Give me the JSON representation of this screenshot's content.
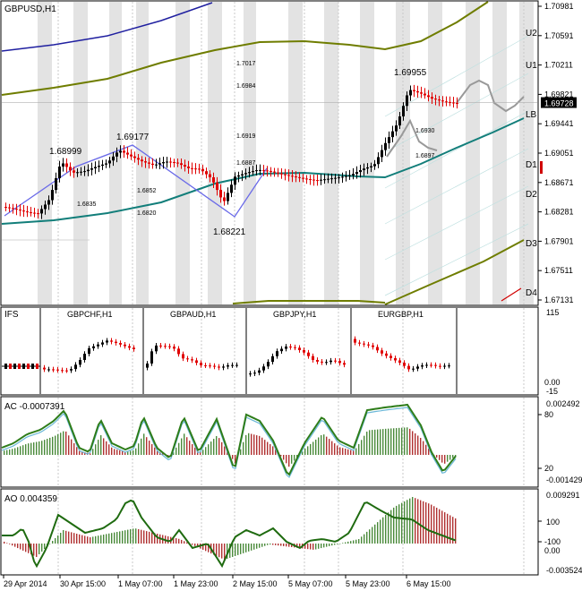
{
  "symbol_title": "GBPUSD,H1",
  "colors": {
    "background": "#ffffff",
    "frame": "#000000",
    "grid": "#c8c8c8",
    "stripe": "#e3e3e3",
    "bull": "#000000",
    "bear": "#e00000",
    "teal": "#127e7a",
    "olive": "#6f7d00",
    "blue": "#2020a0",
    "zigzag": "#6a6ae8",
    "projection": "#999999",
    "marker": "#d00000",
    "ac_line": "#2e7d1a",
    "ac_signal": "#6bb8d8",
    "ao_line": "#1f6b10",
    "hist_green": "#4a8a3a",
    "hist_red": "#b03030"
  },
  "main": {
    "current_price": "1.69728",
    "price_axis_labels": [
      "1.70981",
      "1.70591",
      "1.70211",
      "1.69821",
      "1.69441",
      "1.69051",
      "1.68671",
      "1.68281",
      "1.67901",
      "1.67511",
      "1.67131"
    ],
    "level_labels": [
      "U2",
      "U1",
      "LB",
      "D1",
      "D2",
      "D3",
      "D4"
    ],
    "swing_labels": [
      "1.68999",
      "1.69177",
      "1.68221",
      "1.69955"
    ],
    "retrace_labels": [
      "1.6835",
      "1.6852",
      "1.6820",
      "1.7017",
      "1.6984",
      "1.6919",
      "1.6887",
      "1.6930",
      "1.6897"
    ]
  },
  "ifs": {
    "title": "IFS",
    "panels": [
      "GBPCHF,H1",
      "GBPAUD,H1",
      "GBPJPY,H1",
      "EURGBP,H1"
    ],
    "axis": [
      "115",
      "0.00",
      "-15"
    ]
  },
  "ac": {
    "title": "AC -0.0007391",
    "axis": [
      "0.002492",
      "80",
      "20",
      "-0.001429"
    ]
  },
  "ao": {
    "title": "AO 0.004359",
    "axis": [
      "0.009291",
      "100",
      "0.00",
      "-100",
      "-0.003524"
    ]
  },
  "time_axis": [
    "29 Apr 2014",
    "30 Apr 15:00",
    "1 May 07:00",
    "1 May 23:00",
    "2 May 15:00",
    "5 May 07:00",
    "5 May 23:00",
    "6 May 15:00"
  ],
  "chart_data": [
    {
      "type": "candlestick",
      "title": "GBPUSD,H1",
      "ylim": [
        1.6706,
        1.7106
      ],
      "x": [
        "29 Apr 2014",
        "30 Apr 15:00",
        "1 May 07:00",
        "1 May 23:00",
        "2 May 15:00",
        "5 May 07:00",
        "5 May 23:00",
        "6 May 15:00"
      ],
      "close_path": [
        1.6835,
        1.6832,
        1.6828,
        1.6826,
        1.6845,
        1.6895,
        1.688,
        1.6882,
        1.6888,
        1.6893,
        1.691,
        1.6902,
        1.6895,
        1.689,
        1.6895,
        1.6893,
        1.6886,
        1.6885,
        1.6872,
        1.684,
        1.6875,
        1.688,
        1.6884,
        1.6882,
        1.6878,
        1.6875,
        1.6872,
        1.687,
        1.6872,
        1.6874,
        1.6877,
        1.6885,
        1.689,
        1.692,
        1.6945,
        1.699,
        1.6985,
        1.6978,
        1.6974,
        1.6972
      ],
      "swings": [
        "1.68999",
        "1.69177",
        "1.68221",
        "1.69955"
      ],
      "current": 1.69728
    },
    {
      "type": "bar",
      "title": "AC -0.0007391",
      "ylim": [
        -0.001429,
        0.002492
      ]
    },
    {
      "type": "bar",
      "title": "AO 0.004359",
      "ylim": [
        -0.003524,
        0.009291
      ]
    }
  ]
}
